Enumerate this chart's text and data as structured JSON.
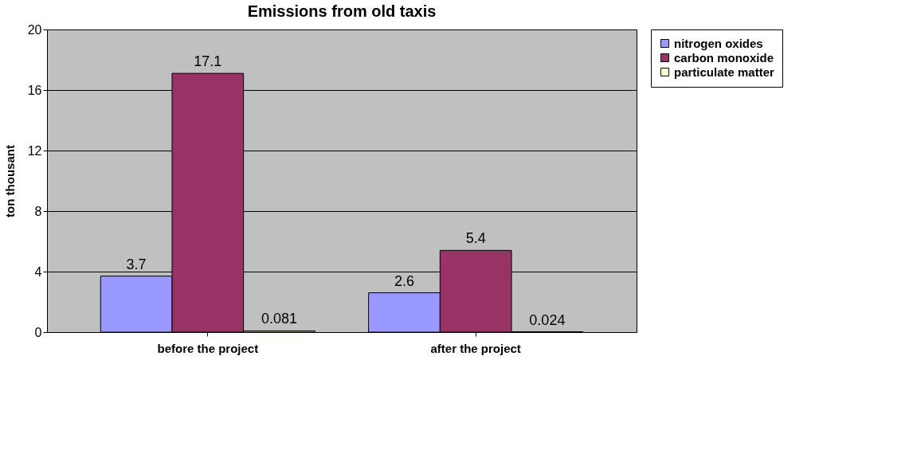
{
  "chart_data": {
    "type": "bar",
    "title": "Emissions from old taxis",
    "ylabel": "ton thousant",
    "categories": [
      "before the project",
      "after the project"
    ],
    "series": [
      {
        "name": "nitrogen oxides",
        "color": "#9999ff",
        "values": [
          3.7,
          2.6
        ]
      },
      {
        "name": "carbon monoxide",
        "color": "#993366",
        "values": [
          17.1,
          5.4
        ]
      },
      {
        "name": "particulate matter",
        "color": "#ffffcc",
        "values": [
          0.081,
          0.024
        ]
      }
    ],
    "ylim": [
      0,
      20
    ],
    "yticks": [
      0,
      4,
      8,
      12,
      16,
      20
    ],
    "grid": "y",
    "legend": "right",
    "data_labels": true
  }
}
